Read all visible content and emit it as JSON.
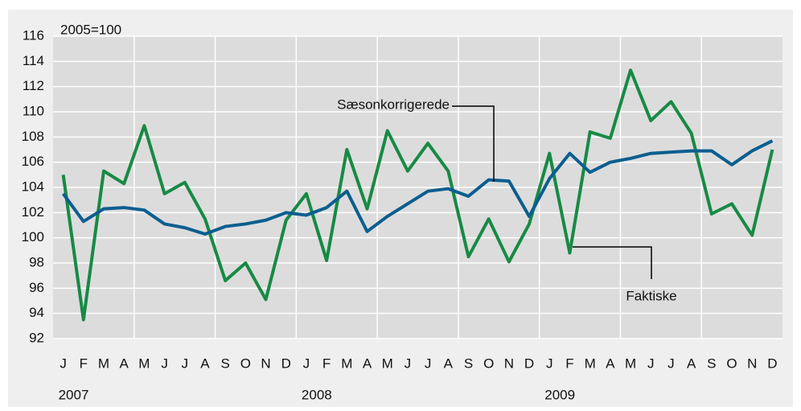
{
  "chart_data": {
    "type": "line",
    "unit_label": "2005=100",
    "categories": [
      "J",
      "F",
      "M",
      "A",
      "M",
      "J",
      "J",
      "A",
      "S",
      "O",
      "N",
      "D",
      "J",
      "F",
      "M",
      "A",
      "M",
      "J",
      "J",
      "A",
      "S",
      "O",
      "N",
      "D",
      "J",
      "F",
      "M",
      "A",
      "M",
      "J",
      "J",
      "A",
      "S",
      "O",
      "N",
      "D"
    ],
    "years": [
      "2007",
      "2008",
      "2009"
    ],
    "series": [
      {
        "name": "Faktiske",
        "color": "#178a45",
        "values": [
          105.0,
          93.5,
          105.3,
          104.3,
          108.9,
          103.5,
          104.4,
          101.5,
          96.6,
          98.0,
          95.1,
          101.4,
          103.5,
          98.2,
          107.0,
          102.3,
          108.5,
          105.3,
          107.5,
          105.3,
          98.5,
          101.5,
          98.1,
          101.1,
          106.7,
          98.8,
          108.4,
          107.9,
          113.3,
          109.3,
          110.8,
          108.3,
          101.9,
          102.7,
          100.2,
          107.0
        ]
      },
      {
        "name": "Sæsonkorrigerede",
        "color": "#0b5e8f",
        "values": [
          103.5,
          101.3,
          102.3,
          102.4,
          102.2,
          101.1,
          100.8,
          100.3,
          100.9,
          101.1,
          101.4,
          102.0,
          101.8,
          102.4,
          103.7,
          100.5,
          101.7,
          102.7,
          103.7,
          103.9,
          103.3,
          104.6,
          104.5,
          101.7,
          104.7,
          106.7,
          105.2,
          106.0,
          106.3,
          106.7,
          106.8,
          106.9,
          106.9,
          105.8,
          106.9,
          107.7
        ]
      }
    ],
    "ylim": [
      92,
      116
    ],
    "yticks": [
      92,
      94,
      96,
      98,
      100,
      102,
      104,
      106,
      108,
      110,
      112,
      114,
      116
    ],
    "grid": true
  }
}
